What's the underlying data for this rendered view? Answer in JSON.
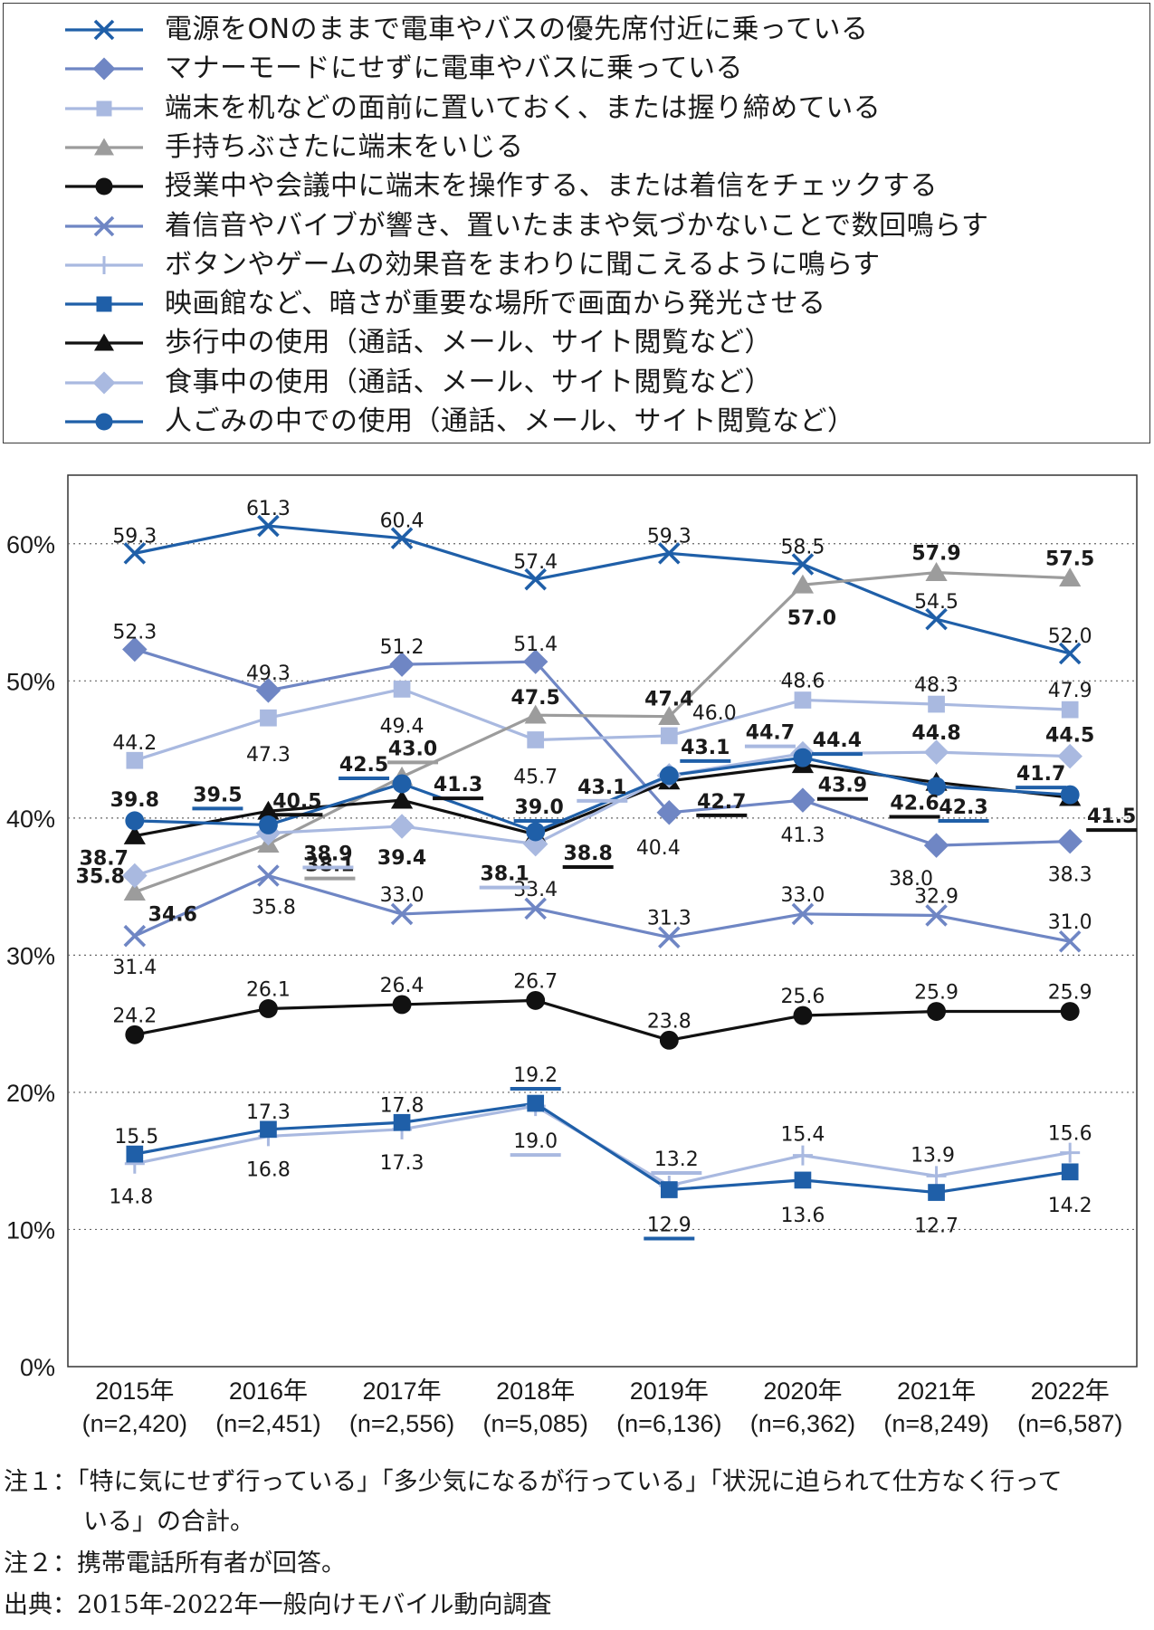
{
  "colors": {
    "dark_blue": "#1f5fa8",
    "mid_blue": "#6f86c4",
    "light_blue": "#a9b9e0",
    "gray": "#9c9c9c",
    "black": "#111111"
  },
  "chart_data": {
    "type": "line",
    "categories": [
      "2015年",
      "2016年",
      "2017年",
      "2018年",
      "2019年",
      "2020年",
      "2021年",
      "2022年"
    ],
    "category_sublabels": [
      "(n=2,420)",
      "(n=2,451)",
      "(n=2,556)",
      "(n=5,085)",
      "(n=6,136)",
      "(n=6,362)",
      "(n=8,249)",
      "(n=6,587)"
    ],
    "yticks": [
      "0%",
      "10%",
      "20%",
      "30%",
      "40%",
      "50%",
      "60%"
    ],
    "ylim": [
      0,
      65
    ],
    "grid": "horizontal dotted",
    "legend_position": "top",
    "series": [
      {
        "name": "電源をONのままで電車やバスの優先席付近に乗っている",
        "color": "#1f5fa8",
        "marker": "x",
        "values": [
          59.3,
          61.3,
          60.4,
          57.4,
          59.3,
          58.5,
          54.5,
          52.0
        ],
        "labels": [
          "59.3",
          "61.3",
          "60.4",
          "57.4",
          "59.3",
          "58.5",
          "54.5",
          "52.0"
        ]
      },
      {
        "name": "マナーモードにせずに電車やバスに乗っている",
        "color": "#6f86c4",
        "marker": "diamond",
        "values": [
          52.3,
          49.3,
          51.2,
          51.4,
          40.4,
          41.3,
          38.0,
          38.3
        ],
        "labels": [
          "52.3",
          "49.3",
          "51.2",
          "51.4",
          "40.4",
          "41.3",
          "38.0",
          "38.3"
        ]
      },
      {
        "name": "端末を机などの面前に置いておく、または握り締めている",
        "color": "#a9b9e0",
        "marker": "square",
        "values": [
          44.2,
          47.3,
          49.4,
          45.7,
          46.0,
          48.6,
          48.3,
          47.9
        ],
        "labels": [
          "44.2",
          "47.3",
          "49.4",
          "45.7",
          "46.0",
          "48.6",
          "48.3",
          "47.9"
        ]
      },
      {
        "name": "手持ちぶさたに端末をいじる",
        "color": "#9c9c9c",
        "marker": "triangle",
        "values": [
          34.6,
          38.1,
          43.0,
          47.5,
          47.4,
          57.0,
          57.9,
          57.5
        ],
        "labels": [
          "34.6",
          "38.1",
          "43.0",
          "47.5",
          "47.4",
          "57.0",
          "57.9",
          "57.5"
        ]
      },
      {
        "name": "授業中や会議中に端末を操作する、または着信をチェックする",
        "color": "#111111",
        "marker": "circle",
        "values": [
          24.2,
          26.1,
          26.4,
          26.7,
          23.8,
          25.6,
          25.9,
          25.9
        ],
        "labels": [
          "24.2",
          "26.1",
          "26.4",
          "26.7",
          "23.8",
          "25.6",
          "25.9",
          "25.9"
        ]
      },
      {
        "name": "着信音やバイブが響き、置いたままや気づかないことで数回鳴らす",
        "color": "#6f86c4",
        "marker": "x",
        "values": [
          31.4,
          35.8,
          33.0,
          33.4,
          31.3,
          33.0,
          32.9,
          31.0
        ],
        "labels": [
          "31.4",
          "35.8",
          "33.0",
          "33.4",
          "31.3",
          "33.0",
          "32.9",
          "31.0"
        ]
      },
      {
        "name": "ボタンやゲームの効果音をまわりに聞こえるように鳴らす",
        "color": "#a9b9e0",
        "marker": "plus",
        "values": [
          14.8,
          16.8,
          17.3,
          19.0,
          13.2,
          15.4,
          13.9,
          15.6
        ],
        "labels": [
          "14.8",
          "16.8",
          "17.3",
          "19.0",
          "13.2",
          "15.4",
          "13.9",
          "15.6"
        ]
      },
      {
        "name": "映画館など、暗さが重要な場所で画面から発光させる",
        "color": "#1f5fa8",
        "marker": "square",
        "values": [
          15.5,
          17.3,
          17.8,
          19.2,
          12.9,
          13.6,
          12.7,
          14.2
        ],
        "labels": [
          "15.5",
          "17.3",
          "17.8",
          "19.2",
          "12.9",
          "13.6",
          "12.7",
          "14.2"
        ]
      },
      {
        "name": "歩行中の使用（通話、メール、サイト閲覧など）",
        "color": "#111111",
        "marker": "triangle",
        "values": [
          38.7,
          40.5,
          41.3,
          38.8,
          42.7,
          43.9,
          42.6,
          41.5
        ],
        "labels": [
          "38.7",
          "40.5",
          "41.3",
          "38.8",
          "42.7",
          "43.9",
          "42.6",
          "41.5"
        ]
      },
      {
        "name": "食事中の使用（通話、メール、サイト閲覧など）",
        "color": "#a9b9e0",
        "marker": "diamond",
        "values": [
          35.8,
          38.9,
          39.4,
          38.1,
          43.1,
          44.7,
          44.8,
          44.5
        ],
        "labels": [
          "35.8",
          "38.9",
          "39.4",
          "38.1",
          "43.1",
          "44.7",
          "44.8",
          "44.5"
        ]
      },
      {
        "name": "人ごみの中での使用（通話、メール、サイト閲覧など）",
        "color": "#1f5fa8",
        "marker": "circle",
        "values": [
          39.8,
          39.5,
          42.5,
          39.0,
          43.1,
          44.4,
          42.3,
          41.7
        ],
        "labels": [
          "39.8",
          "39.5",
          "42.5",
          "39.0",
          "43.1",
          "44.4",
          "42.3",
          "41.7"
        ]
      }
    ]
  },
  "notes": {
    "note1_line1": "注１：「特に気にせず行っている」「多少気になるが行っている」「状況に迫られて仕方なく行って",
    "note1_line2": "いる」の合計。",
    "note2": "注２：携帯電話所有者が回答。",
    "source": "出典：2015年-2022年一般向けモバイル動向調査"
  }
}
